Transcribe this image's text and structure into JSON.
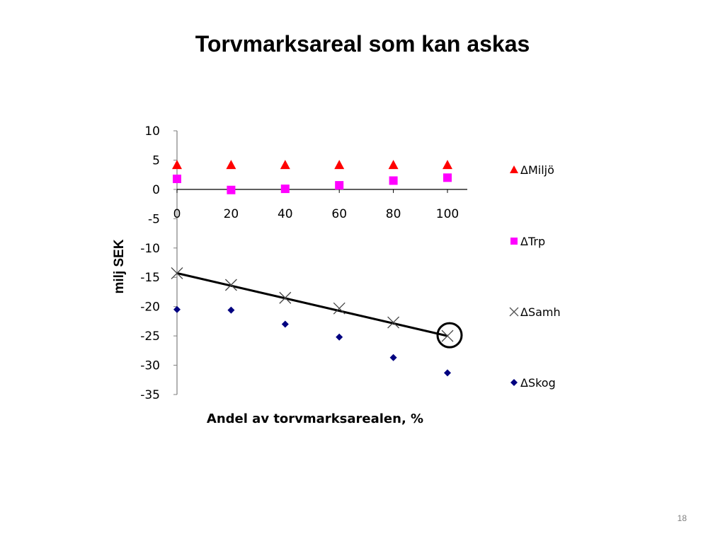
{
  "slide": {
    "title": "Torvmarksareal som kan askas",
    "page_number": "18"
  },
  "chart_data": {
    "type": "scatter",
    "title": "",
    "xlabel": "Andel av torvmarksarealen, %",
    "ylabel": "milj SEK",
    "x": [
      0,
      20,
      40,
      60,
      80,
      100
    ],
    "xticks": [
      "0",
      "20",
      "40",
      "60",
      "80",
      "100"
    ],
    "yticks": [
      "10",
      "5",
      "0",
      "-5",
      "-10",
      "-15",
      "-20",
      "-25",
      "-30",
      "-35"
    ],
    "xlim": [
      0,
      100
    ],
    "ylim": [
      -35,
      10
    ],
    "grid": false,
    "legend_position": "right",
    "series": [
      {
        "name": "ΔMiljö",
        "marker": "triangle",
        "color": "#ff0000",
        "values": [
          4.2,
          4.2,
          4.2,
          4.2,
          4.2,
          4.2
        ]
      },
      {
        "name": "ΔTrp",
        "marker": "square",
        "color": "#ff00ff",
        "values": [
          1.8,
          -0.1,
          0.1,
          0.7,
          1.5,
          2.0
        ]
      },
      {
        "name": "ΔSamh",
        "marker": "cross",
        "color": "#444444",
        "values": [
          -14.3,
          -16.3,
          -18.5,
          -20.3,
          -22.7,
          -25.0
        ]
      },
      {
        "name": "ΔSkog",
        "marker": "diamond",
        "color": "#000080",
        "values": [
          -20.5,
          -20.6,
          -23.0,
          -25.2,
          -28.7,
          -31.3
        ]
      }
    ],
    "annotations": [
      {
        "kind": "trendline",
        "series": "ΔSamh",
        "from": [
          0,
          -14.3
        ],
        "to": [
          100,
          -25.0
        ],
        "color": "#000000"
      },
      {
        "kind": "circle",
        "at": [
          100,
          -25.0
        ],
        "color": "#000000"
      }
    ]
  }
}
